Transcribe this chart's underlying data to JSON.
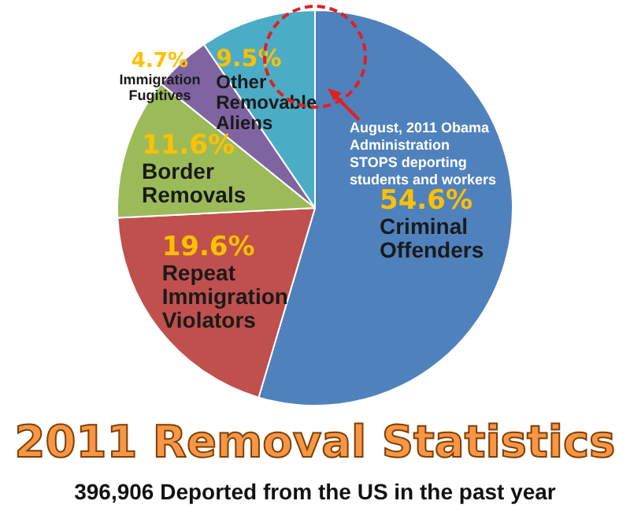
{
  "chart_data": {
    "type": "pie",
    "title": "2011 Removal Statistics",
    "subtitle": "396,906 Deported from the US in the past year",
    "categories": [
      "Criminal Offenders",
      "Repeat Immigration Violators",
      "Border Removals",
      "Immigration Fugitives",
      "Other Removable Aliens"
    ],
    "values": [
      54.6,
      19.6,
      11.6,
      4.7,
      9.5
    ],
    "value_labels": [
      "54.6%",
      "19.6%",
      "11.6%",
      "4.7%",
      "9.5%"
    ],
    "colors": [
      "#4f81bd",
      "#c0504d",
      "#9bbb59",
      "#8064a2",
      "#4bacc6"
    ],
    "annotations": [
      "August, 2011 Obama Administration STOPS deporting students and workers"
    ],
    "legend": false
  }
}
